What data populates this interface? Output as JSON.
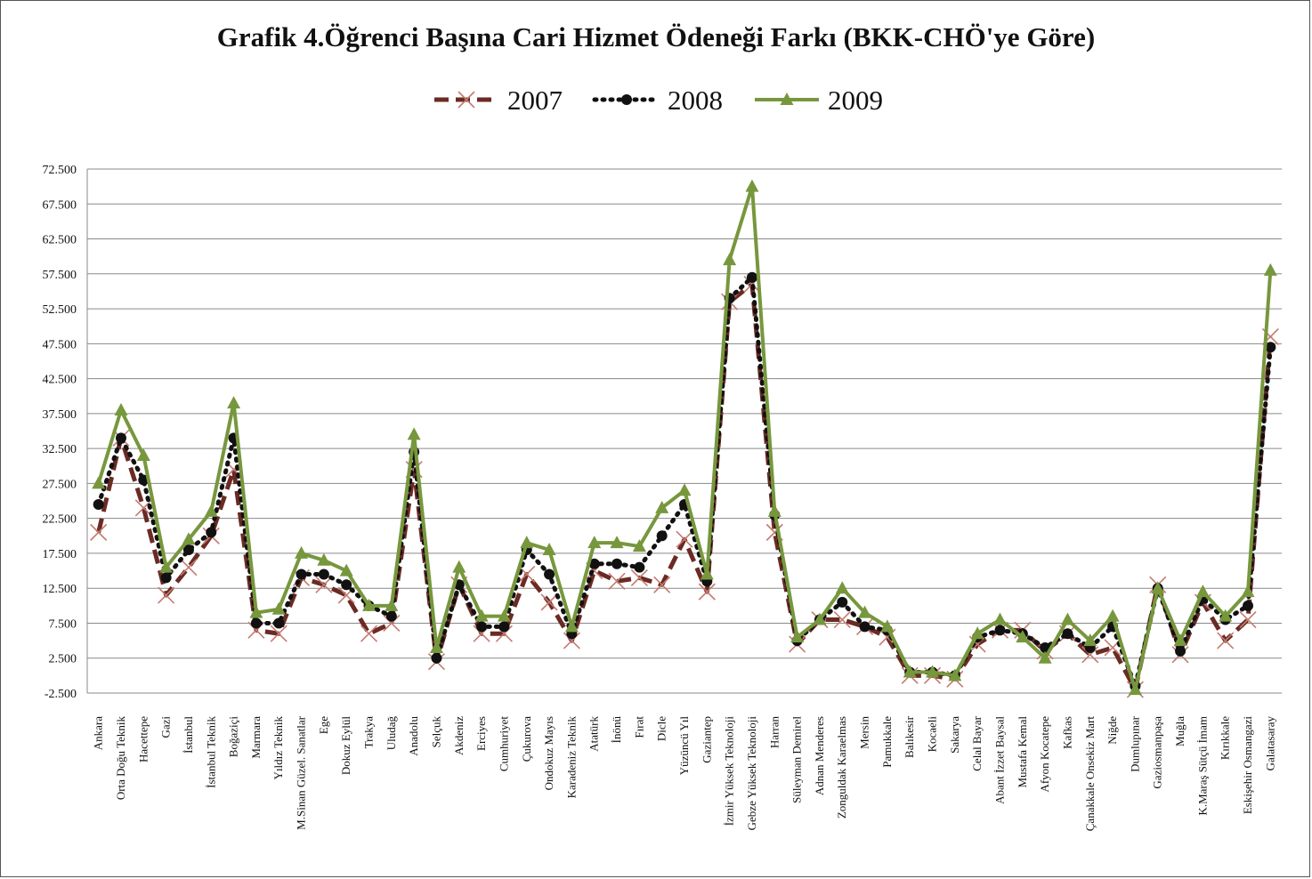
{
  "chart_data": {
    "type": "line",
    "title": "Grafik 4.Öğrenci Başına Cari Hizmet Ödeneği Farkı (BKK-CHÖ'ye Göre)",
    "xlabel": "",
    "ylabel": "",
    "ylim": [
      -2.5,
      72.5
    ],
    "yticks": [
      -2.5,
      2.5,
      7.5,
      12.5,
      17.5,
      22.5,
      27.5,
      32.5,
      37.5,
      42.5,
      47.5,
      52.5,
      57.5,
      62.5,
      67.5,
      72.5
    ],
    "ytick_labels": [
      "-2.500",
      "2.500",
      "7.500",
      "12.500",
      "17.500",
      "22.500",
      "27.500",
      "32.500",
      "37.500",
      "42.500",
      "47.500",
      "52.500",
      "57.500",
      "62.500",
      "67.500",
      "72.500"
    ],
    "grid": true,
    "legend_position": "top-center",
    "categories": [
      "Ankara",
      "Orta Doğu Teknik",
      "Hacettepe",
      "Gazi",
      "İstanbul",
      "İstanbul Teknik",
      "Boğaziçi",
      "Marmara",
      "Yıldız Teknik",
      "M.Sinan Güzel. Sanatlar",
      "Ege",
      "Dokuz Eylül",
      "Trakya",
      "Uludağ",
      "Anadolu",
      "Selçuk",
      "Akdeniz",
      "Erciyes",
      "Cumhuriyet",
      "Çukurova",
      "Ondokuz Mayıs",
      "Karadeniz Teknik",
      "Atatürk",
      "İnönü",
      "Fırat",
      "Dicle",
      "Yüzüncü Yıl",
      "Gaziantep",
      "İzmir Yüksek Teknoloji",
      "Gebze Yüksek Teknoloji",
      "Harran",
      "Süleyman Demirel",
      "Adnan Menderes",
      "Zonguldak Karaelmas",
      "Mersin",
      "Pamukkale",
      "Balıkesir",
      "Kocaeli",
      "Sakarya",
      "Celal Bayar",
      "Abant İzzet Baysal",
      "Mustafa Kemal",
      "Afyon Kocatepe",
      "Kafkas",
      "Çanakkale Onsekiz Mart",
      "Niğde",
      "Dumlupınar",
      "Gaziosmanpaşa",
      "Muğla",
      "K.Maraş Sütçü İmam",
      "Kırıkkale",
      "Eskişehir Osmangazi",
      "Galatasaray"
    ],
    "series": [
      {
        "name": "2007",
        "color": "#6b2a24",
        "style": "dashed",
        "marker": "x",
        "values": [
          20.5,
          34.0,
          24.0,
          11.5,
          15.5,
          20.0,
          29.5,
          6.5,
          6.0,
          14.0,
          13.0,
          11.5,
          6.0,
          7.5,
          29.5,
          2.0,
          13.0,
          6.0,
          6.0,
          14.5,
          10.5,
          5.0,
          15.0,
          13.5,
          14.0,
          13.0,
          19.5,
          12.0,
          53.5,
          56.0,
          20.5,
          4.5,
          8.0,
          8.0,
          7.0,
          5.5,
          0.0,
          0.0,
          -0.5,
          4.5,
          6.5,
          6.5,
          3.5,
          6.0,
          3.0,
          4.0,
          -2.0,
          13.0,
          3.0,
          10.5,
          5.0,
          8.0,
          48.5
        ]
      },
      {
        "name": "2008",
        "color": "#111111",
        "style": "dotted",
        "marker": "circle",
        "values": [
          24.5,
          34.0,
          28.0,
          14.0,
          18.0,
          20.5,
          34.0,
          7.5,
          7.5,
          14.5,
          14.5,
          13.0,
          10.0,
          8.5,
          32.0,
          2.5,
          13.0,
          7.0,
          7.0,
          18.0,
          14.5,
          6.0,
          16.0,
          16.0,
          15.5,
          20.0,
          24.5,
          13.5,
          54.0,
          57.0,
          23.0,
          5.0,
          8.0,
          10.5,
          7.0,
          6.5,
          0.5,
          0.5,
          0.0,
          5.5,
          6.5,
          6.0,
          4.0,
          6.0,
          4.0,
          7.0,
          -1.5,
          12.5,
          3.5,
          11.0,
          8.0,
          10.0,
          47.0
        ]
      },
      {
        "name": "2009",
        "color": "#77973d",
        "style": "solid",
        "marker": "triangle",
        "values": [
          27.5,
          38.0,
          31.5,
          15.5,
          19.5,
          23.5,
          39.0,
          9.0,
          9.5,
          17.5,
          16.5,
          15.0,
          10.0,
          10.0,
          34.5,
          4.0,
          15.5,
          8.5,
          8.5,
          19.0,
          18.0,
          7.0,
          19.0,
          19.0,
          18.5,
          24.0,
          26.5,
          14.5,
          59.5,
          70.0,
          23.5,
          5.5,
          8.0,
          12.5,
          9.0,
          7.0,
          0.5,
          0.5,
          0.0,
          6.0,
          8.0,
          5.5,
          2.5,
          8.0,
          5.0,
          8.5,
          -2.0,
          12.5,
          5.0,
          12.0,
          8.5,
          12.0,
          58.0
        ]
      }
    ]
  }
}
